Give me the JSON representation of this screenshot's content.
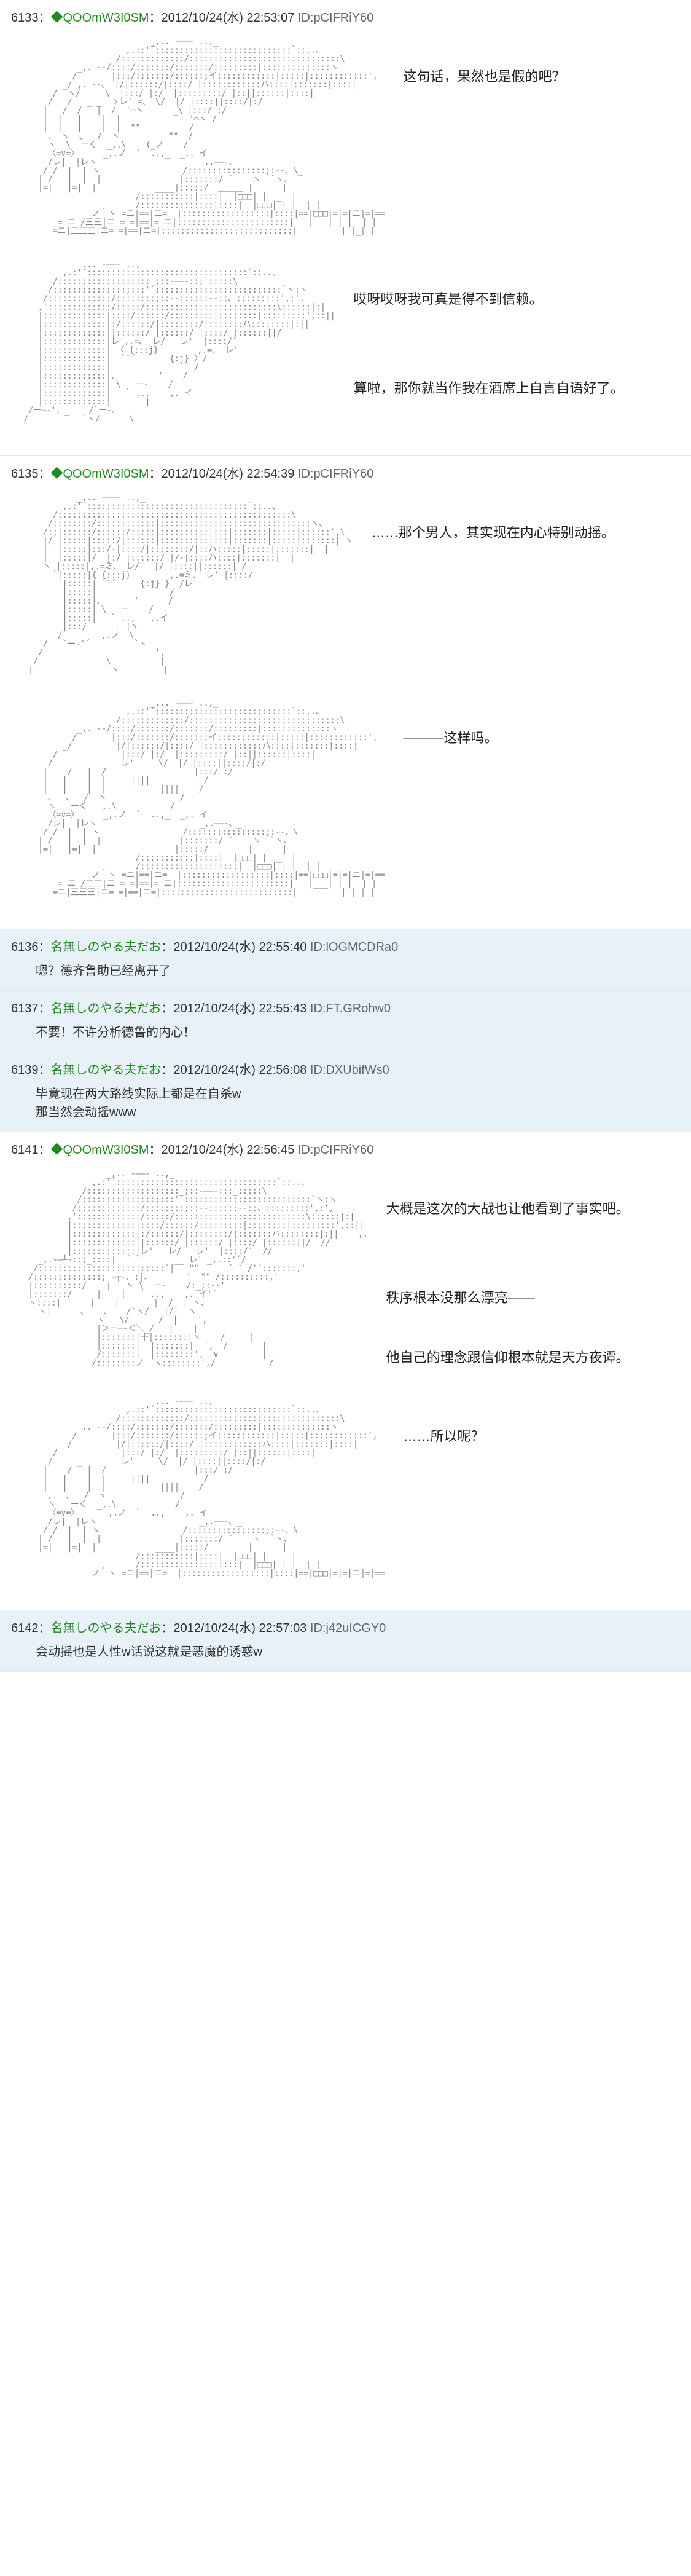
{
  "posts": [
    {
      "num": "6133",
      "name": "◆QOOmW3I0SM",
      "date": "2012/10/24(水) 22:53:07",
      "id": "ID:pCIFRiY60",
      "kind": "aa",
      "sections": [
        {
          "art": "                          _,.. -――- ..,_\n                     ,.::'´::::::::::::::::::::::::::::`::..、\n                   /:::::::::::::/:::::::::::::::::::::::::::::::\\\n           _,. -‐/::::/:::::::/:::::::/:::::::::|::::::::::::::ヽ\n          /       |:::/:::::::/::::::;イ::::::::::::|:::::|::::::::::::',\n        _/ ,. -‐、 |/|::::::/|::::/ |::::::::::::ハ::::|:::::::|::::|\n      /  ヽ/     \\  |:::/ |:/  |:::::::::/ |::||::::::|::::|\n     /   /   _ _  ゝレ' =、 \\/  |/ |::::||::::/|:/\n    |   /  /   |  /  '⌒ヽ      _\\ |:::/ :/\n    |  |   |    |  |              '⌒ヽ /\n    |  |   |    |  |  \"\"          /\n     、 ヽ  、  /  ヽ          \"\"  /\n     ヽ  \\  ーく  _,.\\    (_ノ    /\n     〈=∨=〉     _,.ノ  `  ..,_  _,. イ\n     /レ|  |レヽ                     _,.――-、_\n    / /  |  | ヽ                 /::::::::::::::::;:-‐、\\_\n   | /   |  |  |                |:::::::/ ̄     ヽ  `ヽ、\n   |=|   |=|  |            ____|:::::/  ＿＿＿ |      |\n                       /:::::::::::|::::|  |□□□| |  _  |\n                       /:::::::::::::::|::::|  |□□□| | |  | |\n              ノ｀ヽ =ニ|==|ニ=  |::::::::::::::::::|::::|==|□□□|=|=|ニ|=|==\n       = ニ /三三|ニ = =|==|= ニ|:::::::::::::::::::::::|   |___| | |  | |\n      =ニ|三三三|ニ= =|==|ニ=|:::::::::::::::::::::::::::|         | |_| |",
          "dialogue": "这句话，果然也是假的吧？"
        },
        {
          "art": "           _,.. -――- ..,_\n        ,.:'´:::::::::::::::::::::::::::::::::`::..、\n      /:::::::::::::::::::_;::-――-::;_:::::\\\n     /:::::::::::::::;:::'´::::::::::::::::::::::::::`ヽ:ヽ\n    /:::::::::::::/::::::::;::-‐::::::‐-::、:::::::::',:',\n   ,':::::::::::::/:::::/:::::::::::::::::::::::::::\\::::::|:|\n   |:::::::::::::|::::/::::::/:::::::::|::::::::|:::::::::',::||\n   |:::::::::::::|:/::::::/|::::::::/|:::::::ハ::::::::|:||\n   |:::::::::::::||::::::/ |::::::/ |::::/ |::::::||/\n   |:::::::::::::|レ',.=、 レ/   レ'  |::::/′\n   |:::::::::::::| 〈 {:::j}        ,.=、 レ'\n   |:::::::::::::|  `¨´       {:j} 〉/\n   |:::::::::::::|              `´ /\n   |:::::::::::::|、        '    /\n   |:::::::::::::| \\   ー-    /\n   |:::::::::::::|   ` ..,_  _,. イ\n   |:::::::::::::|       |\n /ー―-'、_    /`ー-、\n/           `ヽ/      \\",
          "dialogue": "哎呀哎呀我可真是得不到信赖。\n\n\n算啦，那你就当作我在酒席上自言自语好了。"
        }
      ]
    },
    {
      "num": "6135",
      "name": "◆QOOmW3I0SM",
      "date": "2012/10/24(水) 22:54:39",
      "id": "ID:pCIFRiY60",
      "kind": "aa",
      "sections": [
        {
          "art": "           _,.. -――- ..,_\n        ,.:'´:::::::::::::::::::::::::::::::::`::..、\n      /::::::::::::::::::::::::::::::::::::::::::::::::\\\n     /::::::::/::::::::::::|:::::::::::::::::::::::::::::::ヽ、\n    /:;|::::::/::::::/:::::|::::::::::|:::|:::::::|:::::|::::::',\\\n    |/ |:::::|:::::/|::::::|::::::::::|:::|:::::::|:::::|:::::::| ヽ\n    |  |:::::|:::/-|::::/|::::::::/|::ハ:::::|:::::|:::::::|  |\n    |  |:::::|/  |:/ |::::::/ |/-|::::ハ::::|:::::::|  |\n    ヽ |:::::|,.=ミ、 レ/   |/ |::::||::::::| /\n      `|:::::|{ {:::j}        ,.=ミ、 レ' |::::/\n        |:::::| `¨´     {:j} }  /レ'\n        |:::::|           `´  /\n        |:::::|、      '      /\n        |:::::| \\   ー    /\n        |:::::|   ` ..,_ _,.イ\n        |:::/        |ヽ\n      _/       _,.ノ  \\_\n    /   `ー‐'´         `ヽ\n   /                       ',\n  /              \\          |\n |                ヽ         |",
          "dialogue": "……那个男人，其实现在内心特别动摇。"
        },
        {
          "art": "                          _,.. -――- ..,_\n                     ,.::'´::::::::::::::::::::::::::::`::..、\n                   /:::::::::::::/:::::::::::::::::::::::::::::::\\\n           _,. -‐/::::/:::::::/:::::::/:::::::::|::::::::::::::ヽ\n          /       |:::/:::::::/::::::;イ::::::::::::|:::::|::::::::::::',\n        _/         |/|::::::/|::::/ |::::::::::::ハ::::|:::::::|::::|\n      /             |:::/ |:/  |:::::::::/ |::||::::::|::::|\n     /     _        レ'     \\/  |/ |::::||::::/|:/\n    |    /   |  /                  |:::/ :/\n    |   |    |  |     ||||           /\n    |   |    |  |           ||||    /\n     、  、  /  ヽ               /\n     ヽ   ーく  _,.\\    __     /\n     〈=∨=〉     _,.ノ  `  ..,_  _,. イ\n     /レ|  |レヽ                     _,.――-、_\n    / /  |  | ヽ                 /::::::::::::::::;:-‐、\\_\n   | /   |  |  |                |:::::::/ ̄     ヽ  `ヽ、\n   |=|   |=|  |            ____|:::::/  ＿＿＿ |      |\n                       /:::::::::::|::::|  |□□□| |  _  |\n                       /:::::::::::::::|::::|  |□□□| | |  | |\n              ノ｀ヽ =ニ|==|ニ=  |::::::::::::::::::|::::|==|□□□|=|=|ニ|=|==\n       = ニ /三三|ニ = =|==|= ニ|:::::::::::::::::::::::|   |___| | |  | |\n      =ニ|三三三|ニ= =|==|ニ=|:::::::::::::::::::::::::::|         | |_| |",
          "dialogue": "―――这样吗。"
        }
      ]
    },
    {
      "num": "6136",
      "name": "名無しのやる夫だお",
      "date": "2012/10/24(水) 22:55:40",
      "id": "ID:lOGMCDRa0",
      "kind": "reply",
      "body": "嗯？德齐鲁助已经离开了"
    },
    {
      "num": "6137",
      "name": "名無しのやる夫だお",
      "date": "2012/10/24(水) 22:55:43",
      "id": "ID:FT.GRohw0",
      "kind": "reply",
      "body": "不要！不许分析德鲁的内心！"
    },
    {
      "num": "6139",
      "name": "名無しのやる夫だお",
      "date": "2012/10/24(水) 22:56:08",
      "id": "ID:DXUbifWs0",
      "kind": "reply",
      "body": "毕竟现在两大路线实际上都是在自杀w\n那当然会动摇www"
    },
    {
      "num": "6141",
      "name": "◆QOOmW3I0SM",
      "date": "2012/10/24(水) 22:56:45",
      "id": "ID:pCIFRiY60",
      "kind": "aa",
      "sections": [
        {
          "art": "                 _,.. -――- ..,_\n              ,.:'´:::::::::::::::::::::::::::::::::`::..、\n            /:::::::::::::::::::_;::-――-::;_:::::\\\n           /:::::::::::::::;:::'´::::::::::::::::::::::::::`ヽ:ヽ\n          /:::::::::::::/::::::::;::-‐::::::‐-::、:::::::::',:',\n         ,':::::::::::::/:::::/:::::::::::::::::::::::::::\\::::::|:|\n         |:::::::::::::|::::/::::::/:::::::::|::::::::|:::::::::',::||\n         |:::::::::::::|:/::::::/|::::::::/|:::::::ハ::::::::|:||    ,.\n         |:::::::::::::||::::::/ |::::::/ |::::/ |::::::||/  //\n         |:::::::::::::|レ'__ レ/   レ'  |::::/′ _//\n   _,.-―┴-::;_::::|  ´ `       __ レ' _,.::'´/\n  /::::::::::::::::::::::::::`|   \"\"      ´ ` /'´:::::::,'\n /::::::::::::::; -┬-、:|、       '  \"\" /::::::::::,'\n |::::::::::/    |   ヽ \\  ー-    /:_;:-‐'\n |:::::::/     |    |   ` ..,_  _,. イ'´\n ヽ::::|      |    |       |  /  | ヽ、\n   ヽ|      、   、   /`ヽ/   |/|  ヽ\n               ヽ   \\/      /  |    ',\n               |＞ー―-＜＼_/   |    |\n               |:::::::|十|:::::::|ヽ    /     |\n               |:::::::|  |:::::::|  ',  /       |\n               /:::::::|  |::::::::',  ∨         |\n              /::::::::ノ  ヽ::::::::',/           /",
          "dialogue": "大概是这次的大战也让他看到了事实吧。\n\n\n秩序根本没那么漂亮——\n\n他自己的理念跟信仰根本就是天方夜谭。"
        },
        {
          "art": "                          _,.. -――- ..,_\n                     ,.::'´::::::::::::::::::::::::::::`::..、\n                   /:::::::::::::/:::::::::::::::::::::::::::::::\\\n           _,. -‐/::::/:::::::/:::::::/:::::::::|::::::::::::::ヽ\n          /       |:::/:::::::/::::::;イ::::::::::::|:::::|::::::::::::',\n        _/         |/|::::::/|::::/ |::::::::::::ハ::::|:::::::|::::|\n      /             |:::/ |:/  |:::::::::/ |::||::::::|::::|\n     /     _        レ'     \\/  |/ |::::||::::/|:/\n    |    /   |  /                  |:::/ :/\n    |   |    |  |     ||||           /\n    |   |    |  |           ||||    /\n     、  、  /  ヽ               /\n     ヽ   ーく  _,.\\            /\n     〈=∨=〉     _,.ノ  `  ..,_  _,. イ\n     /レ|  |レヽ                     _,.――-、_\n    / /  |  | ヽ                 /::::::::::::::::;:-‐、\\_\n   | /   |  |  |                |:::::::/ ̄     ヽ  `ヽ、\n   |=|   |=|  |            ____|:::::/  ＿＿＿ |      |\n                       /:::::::::::|::::|  |□□□| |  _  |\n                       /:::::::::::::::|::::|  |□□□| | |  | |\n              ノ｀ヽ =ニ|==|ニ=  |::::::::::::::::::|::::|==|□□□|=|=|ニ|=|==",
          "dialogue": "……所以呢？"
        }
      ]
    },
    {
      "num": "6142",
      "name": "名無しのやる夫だお",
      "date": "2012/10/24(水) 22:57:03",
      "id": "ID:j42uICGY0",
      "kind": "reply",
      "body": "会动摇也是人性w话说这就是恶魔的诱惑w"
    }
  ]
}
